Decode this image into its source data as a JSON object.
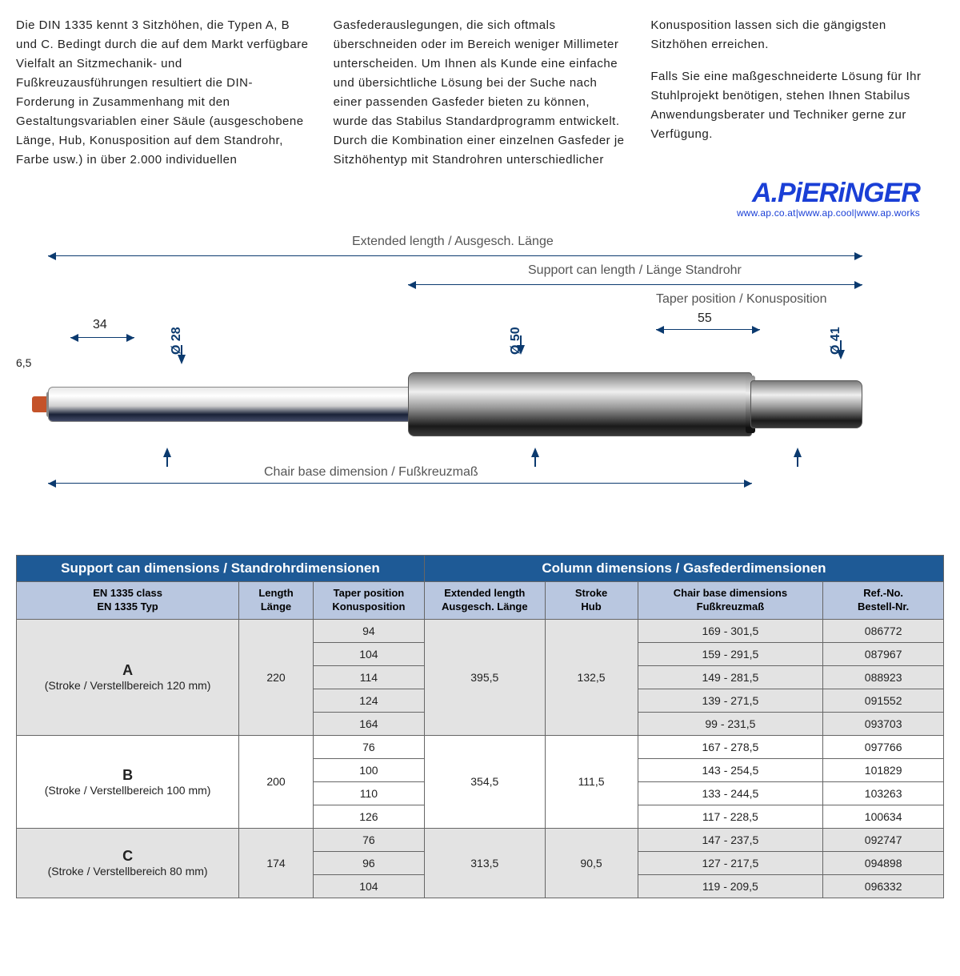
{
  "intro": {
    "p1": "Die DIN 1335 kennt 3 Sitzhöhen, die Typen A, B und C. Bedingt durch die auf dem Markt verfügbare Vielfalt an Sitzmechanik- und Fußkreuzausführungen resultiert die DIN-Forderung in Zusammenhang mit den Gestaltungsvariablen einer Säule (ausgeschobene Länge, Hub, Konusposition auf dem Standrohr, Farbe usw.) in über 2.000 individuellen Gasfederauslegungen, die sich oftmals überschneiden oder im Bereich weniger Millimeter unterscheiden. Um Ihnen als Kunde eine einfache und übersichtliche Lösung bei der Suche nach einer passenden Gasfeder bieten zu können, wurde das Stabilus Standardprogramm entwickelt. Durch die Kombination einer einzelnen Gasfeder je Sitzhöhentyp mit Standrohren unterschiedlicher Konusposition lassen sich die gängigsten Sitzhöhen erreichen.",
    "p2": "Falls Sie eine maßgeschneiderte Lösung für Ihr Stuhlprojekt benötigen, stehen Ihnen Stabilus Anwendungsberater und Techniker gerne zur Verfügung."
  },
  "logo": {
    "text": "A.PiERiNGER",
    "urls": "www.ap.co.at|www.ap.cool|www.ap.works"
  },
  "diagram": {
    "extended": "Extended length /  Ausgesch. Länge",
    "support": "Support can length / Länge Standrohr",
    "taperpos": "Taper position / Konusposition",
    "chairbase": "Chair base dimension / Fußkreuzmaß",
    "v65": "6,5",
    "v34": "34",
    "d28": "Ø 28",
    "d50": "Ø 50",
    "d41": "Ø 41",
    "v55": "55"
  },
  "table": {
    "header_left": "Support can dimensions / Standrohrdimensionen",
    "header_right": "Column dimensions / Gasfederdimensionen",
    "cols": {
      "c1": "EN 1335 class\nEN 1335 Typ",
      "c2": "Length\nLänge",
      "c3": "Taper position\nKonusposition",
      "c4": "Extended length\nAusgesch. Länge",
      "c5": "Stroke\nHub",
      "c6": "Chair base dimensions\nFußkreuzmaß",
      "c7": "Ref.-No.\nBestell-Nr."
    },
    "groups": [
      {
        "cls": "grpA",
        "letter": "A",
        "desc": "(Stroke / Verstellbereich 120 mm)",
        "length": "220",
        "ext": "395,5",
        "stroke": "132,5",
        "rows": [
          {
            "tp": "94",
            "cb": "169 - 301,5",
            "ref": "086772"
          },
          {
            "tp": "104",
            "cb": "159 - 291,5",
            "ref": "087967"
          },
          {
            "tp": "114",
            "cb": "149 - 281,5",
            "ref": "088923"
          },
          {
            "tp": "124",
            "cb": "139 - 271,5",
            "ref": "091552"
          },
          {
            "tp": "164",
            "cb": "99 - 231,5",
            "ref": "093703"
          }
        ]
      },
      {
        "cls": "grpB",
        "letter": "B",
        "desc": "(Stroke / Verstellbereich 100 mm)",
        "length": "200",
        "ext": "354,5",
        "stroke": "111,5",
        "rows": [
          {
            "tp": "76",
            "cb": "167 - 278,5",
            "ref": "097766"
          },
          {
            "tp": "100",
            "cb": "143 - 254,5",
            "ref": "101829"
          },
          {
            "tp": "110",
            "cb": "133 - 244,5",
            "ref": "103263"
          },
          {
            "tp": "126",
            "cb": "117 - 228,5",
            "ref": "100634"
          }
        ]
      },
      {
        "cls": "grpC",
        "letter": "C",
        "desc": "(Stroke / Verstellbereich 80 mm)",
        "length": "174",
        "ext": "313,5",
        "stroke": "90,5",
        "rows": [
          {
            "tp": "76",
            "cb": "147 - 237,5",
            "ref": "092747"
          },
          {
            "tp": "96",
            "cb": "127 - 217,5",
            "ref": "094898"
          },
          {
            "tp": "104",
            "cb": "119 - 209,5",
            "ref": "096332"
          }
        ]
      }
    ]
  }
}
